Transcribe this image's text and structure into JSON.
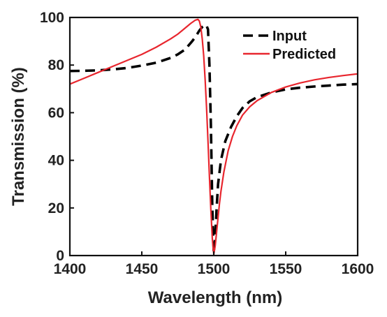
{
  "chart_data": {
    "type": "line",
    "title": "",
    "xlabel": "Wavelength (nm)",
    "ylabel": "Transmission (%)",
    "xlim": [
      1400,
      1600
    ],
    "ylim": [
      0,
      100
    ],
    "xticks": [
      1400,
      1450,
      1500,
      1550,
      1600
    ],
    "yticks": [
      0,
      20,
      40,
      60,
      80,
      100
    ],
    "grid": false,
    "legend_position": "top-right",
    "series": [
      {
        "name": "Input",
        "style": "dashed",
        "color": "#000000",
        "x": [
          1400,
          1410,
          1420,
          1430,
          1440,
          1450,
          1460,
          1470,
          1475,
          1480,
          1485,
          1488,
          1490,
          1492,
          1494,
          1495,
          1496,
          1497,
          1498,
          1499,
          1500,
          1501,
          1502,
          1503,
          1505,
          1508,
          1512,
          1516,
          1520,
          1525,
          1530,
          1540,
          1550,
          1560,
          1570,
          1580,
          1590,
          1600
        ],
        "y": [
          77.5,
          77.6,
          77.8,
          78.2,
          78.8,
          79.8,
          81.0,
          83.0,
          84.5,
          86.5,
          90.0,
          92.5,
          94.5,
          96.0,
          97.0,
          96.5,
          95.0,
          80.0,
          55.0,
          20.0,
          1.0,
          8.0,
          20.0,
          30.0,
          40.0,
          48.0,
          54.0,
          58.5,
          62.0,
          64.8,
          66.5,
          68.5,
          69.8,
          70.5,
          71.0,
          71.4,
          71.8,
          72.0
        ]
      },
      {
        "name": "Predicted",
        "style": "solid",
        "color": "#e8262e",
        "x": [
          1400,
          1410,
          1420,
          1430,
          1440,
          1450,
          1460,
          1470,
          1475,
          1480,
          1484,
          1487,
          1489,
          1490,
          1491,
          1492,
          1493,
          1494,
          1495,
          1496,
          1497,
          1498,
          1499,
          1500,
          1501,
          1502,
          1503,
          1504,
          1505,
          1507,
          1510,
          1513,
          1516,
          1520,
          1525,
          1530,
          1540,
          1550,
          1560,
          1570,
          1580,
          1590,
          1600
        ],
        "y": [
          72.0,
          74.5,
          77.0,
          79.5,
          82.0,
          84.5,
          87.5,
          91.0,
          93.0,
          95.5,
          97.5,
          98.8,
          99.2,
          98.5,
          96.0,
          91.0,
          84.0,
          74.0,
          62.0,
          48.0,
          33.0,
          19.0,
          7.0,
          0.5,
          4.0,
          10.0,
          16.0,
          22.0,
          27.0,
          35.0,
          44.0,
          50.0,
          54.5,
          59.0,
          62.5,
          65.0,
          68.5,
          70.8,
          72.5,
          73.8,
          74.8,
          75.6,
          76.3
        ]
      }
    ]
  }
}
